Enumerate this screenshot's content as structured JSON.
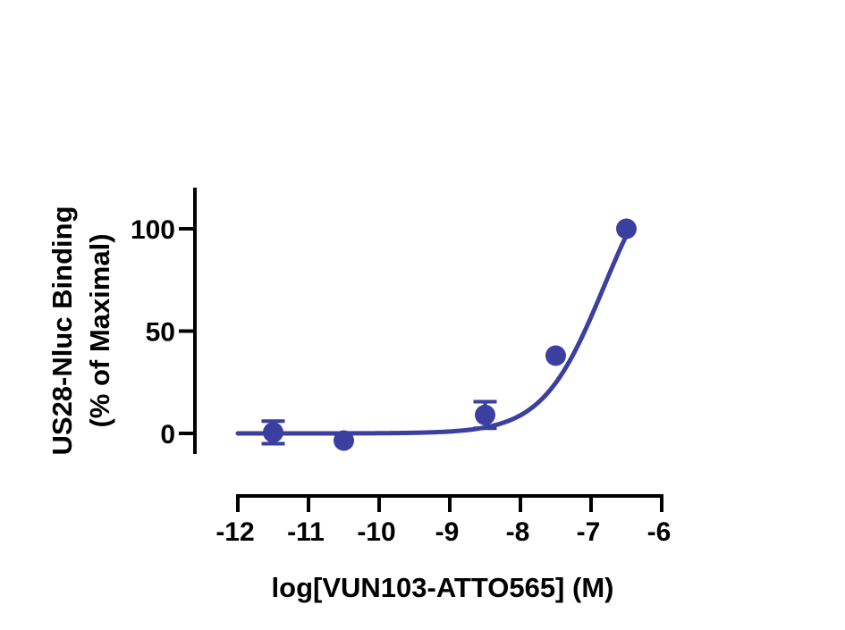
{
  "chart_data": {
    "type": "scatter",
    "xlabel": "log[VUN103-ATTO565] (M)",
    "ylabel_lines": [
      "US28-Nluc Binding",
      "(% of Maximal)"
    ],
    "xlim": [
      -12,
      -6
    ],
    "ylim": [
      -10,
      120
    ],
    "x_ticks": [
      -12,
      -11,
      -10,
      -9,
      -8,
      -7,
      -6
    ],
    "x_tick_labels": [
      "-12",
      "-11",
      "-10",
      "-9",
      "-8",
      "-7",
      "-6"
    ],
    "y_ticks": [
      0,
      50,
      100
    ],
    "y_tick_labels": [
      "0",
      "50",
      "100"
    ],
    "grid": false,
    "series": [
      {
        "points": [
          {
            "x": -11.5,
            "y": 0.5,
            "err": 5.5
          },
          {
            "x": -10.5,
            "y": -3.5,
            "err": 0
          },
          {
            "x": -8.5,
            "y": 9,
            "err": 6.5
          },
          {
            "x": -7.5,
            "y": 38,
            "err": 0
          },
          {
            "x": -6.5,
            "y": 100,
            "err": 0
          }
        ],
        "fit": {
          "model": "sigmoidal dose-response",
          "bottom": 0,
          "top": 143,
          "logEC50": -6.82,
          "hill": 1.0,
          "x_range": [
            -12,
            -6.5
          ]
        }
      }
    ],
    "colors": {
      "series": "#3b3fa0",
      "axis": "#000000"
    }
  }
}
